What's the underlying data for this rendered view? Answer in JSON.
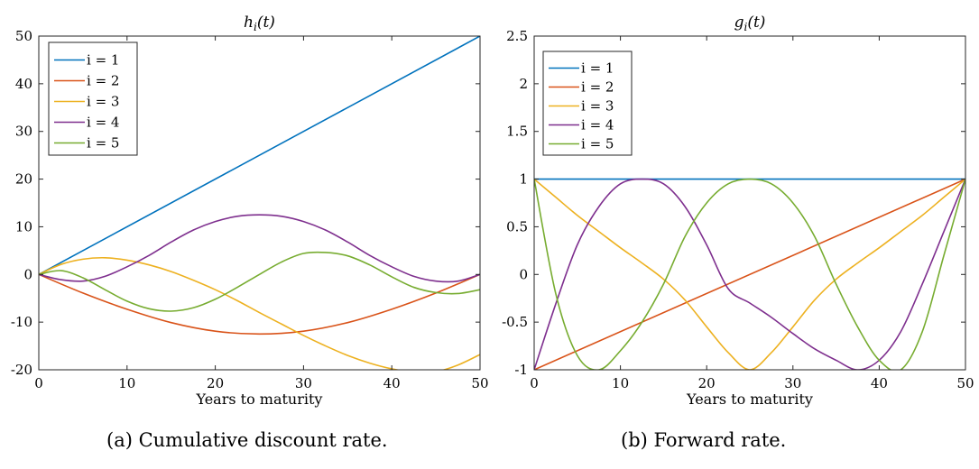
{
  "chart_data": [
    {
      "type": "line",
      "title": "h_i(t)",
      "title_base": "h",
      "title_sub": "i",
      "title_tail": "(t)",
      "xlabel": "Years to maturity",
      "ylabel": "",
      "xlim": [
        0,
        50
      ],
      "ylim": [
        -20,
        50
      ],
      "xticks": [
        0,
        10,
        20,
        30,
        40,
        50
      ],
      "yticks": [
        -20,
        -10,
        0,
        10,
        20,
        30,
        40,
        50
      ],
      "grid": false,
      "legend_position": "top-left",
      "caption": "(a) Cumulative discount rate.",
      "series": [
        {
          "name": "i = 1",
          "color": "#0072BD",
          "x": [
            0,
            50
          ],
          "y": [
            0,
            50
          ]
        },
        {
          "name": "i = 2",
          "color": "#D95319",
          "x": [
            0,
            5,
            10,
            15,
            20,
            25,
            30,
            35,
            40,
            45,
            50
          ],
          "y": [
            0,
            -3.9,
            -7.3,
            -10.1,
            -11.9,
            -12.5,
            -11.9,
            -10.1,
            -7.3,
            -3.9,
            0
          ]
        },
        {
          "name": "i = 3",
          "color": "#EDB120",
          "x": [
            0,
            2.5,
            5,
            7.5,
            10,
            12.5,
            15,
            17.5,
            20,
            22.5,
            25,
            27.5,
            30,
            32.5,
            35,
            37.5,
            40,
            42.5,
            45,
            47.5,
            50
          ],
          "y": [
            0,
            2.1,
            3.2,
            3.5,
            3.0,
            2.0,
            0.6,
            -1.2,
            -3.2,
            -5.5,
            -8.0,
            -10.4,
            -12.8,
            -15.0,
            -17.0,
            -18.6,
            -19.8,
            -20.5,
            -20.4,
            -19.0,
            -16.8
          ]
        },
        {
          "name": "i = 4",
          "color": "#7E2F8E",
          "x": [
            0,
            2.5,
            5,
            7.5,
            10,
            12.5,
            15,
            17.5,
            20,
            22.5,
            25,
            27.5,
            30,
            32.5,
            35,
            37.5,
            40,
            42.5,
            45,
            47.5,
            50
          ],
          "y": [
            0,
            -1.1,
            -1.4,
            -0.4,
            1.6,
            4.0,
            6.8,
            9.3,
            11.1,
            12.2,
            12.5,
            12.2,
            11.1,
            9.3,
            6.8,
            4.0,
            1.6,
            -0.4,
            -1.4,
            -1.4,
            0
          ]
        },
        {
          "name": "i = 5",
          "color": "#77AC30",
          "x": [
            0,
            2.5,
            5,
            7.5,
            10,
            12.5,
            15,
            17.5,
            20,
            22.5,
            25,
            27.5,
            30,
            32.5,
            35,
            37.5,
            40,
            42.5,
            45,
            47.5,
            50
          ],
          "y": [
            0,
            0.8,
            -0.7,
            -3.2,
            -5.6,
            -7.2,
            -7.7,
            -7.0,
            -5.2,
            -2.7,
            0,
            2.6,
            4.4,
            4.6,
            3.9,
            2.0,
            -0.5,
            -2.7,
            -3.8,
            -4.0,
            -3.2
          ]
        }
      ]
    },
    {
      "type": "line",
      "title": "g_i(t)",
      "title_base": "g",
      "title_sub": "i",
      "title_tail": "(t)",
      "xlabel": "Years to maturity",
      "ylabel": "",
      "xlim": [
        0,
        50
      ],
      "ylim": [
        -1,
        2.5
      ],
      "xticks": [
        0,
        10,
        20,
        30,
        40,
        50
      ],
      "yticks": [
        -1,
        -0.5,
        0,
        0.5,
        1,
        1.5,
        2,
        2.5
      ],
      "grid": false,
      "legend_position": "top-left",
      "caption": "(b) Forward rate.",
      "series": [
        {
          "name": "i = 1",
          "color": "#0072BD",
          "x": [
            0,
            50
          ],
          "y": [
            1,
            1
          ]
        },
        {
          "name": "i = 2",
          "color": "#D95319",
          "x": [
            0,
            50
          ],
          "y": [
            -1,
            1
          ]
        },
        {
          "name": "i = 3",
          "color": "#EDB120",
          "x": [
            0,
            2.5,
            5,
            7.5,
            10,
            12.5,
            15,
            17.5,
            20,
            22.5,
            25,
            27.5,
            30,
            32.5,
            35,
            37.5,
            40,
            42.5,
            45,
            47.5,
            50
          ],
          "y": [
            1,
            0.81,
            0.62,
            0.45,
            0.28,
            0.12,
            -0.05,
            -0.27,
            -0.55,
            -0.82,
            -1.0,
            -0.82,
            -0.55,
            -0.27,
            -0.05,
            0.12,
            0.28,
            0.45,
            0.62,
            0.81,
            1
          ]
        },
        {
          "name": "i = 4",
          "color": "#7E2F8E",
          "x": [
            0,
            2.5,
            5,
            7.5,
            10,
            12.5,
            15,
            17.5,
            20,
            22.5,
            25,
            27.5,
            30,
            32.5,
            35,
            37.5,
            40,
            42.5,
            45,
            47.5,
            50
          ],
          "y": [
            -1,
            -0.31,
            0.31,
            0.71,
            0.95,
            1.0,
            0.95,
            0.71,
            0.31,
            -0.15,
            -0.3,
            -0.45,
            -0.62,
            -0.78,
            -0.9,
            -1.0,
            -0.9,
            -0.6,
            -0.1,
            0.45,
            1
          ]
        },
        {
          "name": "i = 5",
          "color": "#77AC30",
          "x": [
            0,
            2.5,
            5,
            7.5,
            10,
            12.5,
            15,
            17.5,
            20,
            22.5,
            25,
            27.5,
            30,
            32.5,
            35,
            37.5,
            40,
            42.5,
            45,
            47.5,
            50
          ],
          "y": [
            1,
            -0.2,
            -0.85,
            -1.0,
            -0.8,
            -0.5,
            -0.1,
            0.4,
            0.75,
            0.95,
            1.0,
            0.95,
            0.75,
            0.4,
            -0.1,
            -0.55,
            -0.9,
            -1.0,
            -0.6,
            0.2,
            1
          ]
        }
      ]
    }
  ]
}
